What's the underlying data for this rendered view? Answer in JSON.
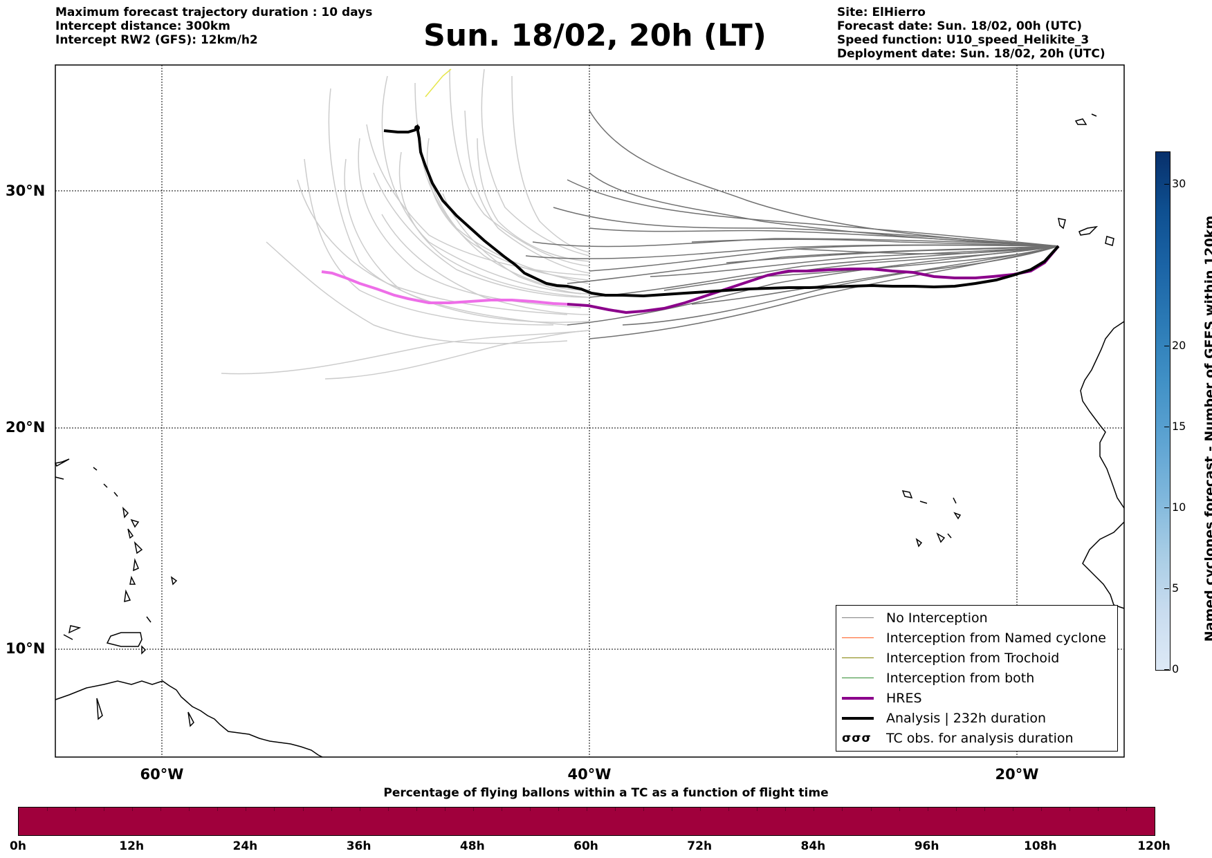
{
  "header": {
    "left_lines": [
      "Maximum forecast trajectory duration : 10 days",
      "Intercept distance: 300km",
      "Intercept RW2 (GFS):  12km/h2"
    ],
    "title": "Sun. 18/02, 20h (LT)",
    "right_lines": [
      "Site: ElHierro",
      "Forecast date: Sun. 18/02, 00h (UTC)",
      "Speed function: U10_speed_Helikite_3",
      "Deployment date: Sun. 18/02, 20h (UTC)"
    ]
  },
  "map": {
    "lon_range": [
      -65,
      15
    ],
    "lat_range": [
      5.5,
      35
    ],
    "lat_labels": [
      "30°N",
      "20°N",
      "10°N"
    ],
    "lat_values": [
      30,
      20,
      10
    ],
    "lon_labels": [
      "60°W",
      "40°W",
      "20°W"
    ],
    "lon_values": [
      -60,
      -40,
      -20
    ],
    "site": {
      "lon": -17.9,
      "lat": 27.8
    }
  },
  "legend": {
    "items": [
      {
        "label": "No Interception",
        "color": "#808080",
        "width": 1.5
      },
      {
        "label": "Interception from Named cyclone",
        "color": "#ff5a1e",
        "width": 1.5
      },
      {
        "label": "Interception from Trochoid",
        "color": "#808000",
        "width": 1.5
      },
      {
        "label": "Interception from both",
        "color": "#2e8b2e",
        "width": 1.5
      },
      {
        "label": "HRES",
        "color": "#8b008b",
        "width": 4
      },
      {
        "label": "Analysis | 232h duration",
        "color": "#000000",
        "width": 4
      }
    ],
    "tc_symbol": "σσσ",
    "tc_label": "TC obs. for analysis duration"
  },
  "colorbar_vertical": {
    "title": "Named cyclones forecast - Number of GEFS within 120km",
    "ticks": [
      "0",
      "5",
      "10",
      "15",
      "20",
      "30"
    ],
    "tick_values": [
      0,
      5,
      10,
      15,
      20,
      30
    ],
    "max": 32,
    "colors": [
      "#dde9f6",
      "#c9dcef",
      "#a8cde5",
      "#7fb7dc",
      "#5da3d2",
      "#4191c6",
      "#2c7bb6",
      "#1b64a6",
      "#0e4f90",
      "#08306b"
    ]
  },
  "colorbar_horizontal": {
    "title": "Percentage of flying ballons within a TC as a function of flight time",
    "labels": [
      "0h",
      "12h",
      "24h",
      "36h",
      "48h",
      "60h",
      "72h",
      "84h",
      "96h",
      "108h",
      "120h"
    ],
    "fill_color": "#a0003c"
  }
}
